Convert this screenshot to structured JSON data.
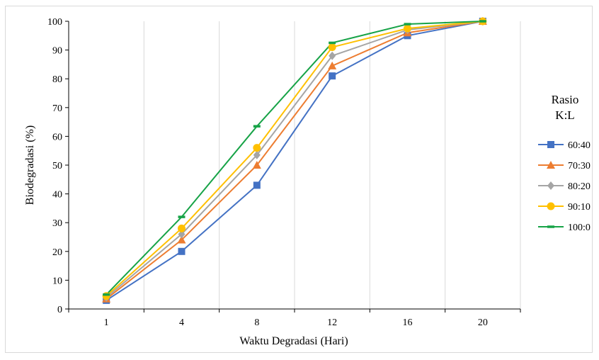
{
  "chart_data": {
    "type": "line",
    "title": "",
    "xlabel": "Waktu Degradasi (Hari)",
    "ylabel": "Biodegradasi (%)",
    "categories": [
      "1",
      "4",
      "8",
      "12",
      "16",
      "20"
    ],
    "ylim": [
      0,
      100
    ],
    "yticks": [
      0,
      10,
      20,
      30,
      40,
      50,
      60,
      70,
      80,
      90,
      100
    ],
    "grid": "vertical",
    "legend": {
      "title_line1": "Rasio",
      "title_line2": "K:L",
      "placement": "right"
    },
    "series": [
      {
        "name": "60:40",
        "color": "#4472c4",
        "marker": "square",
        "values": [
          3,
          20,
          43,
          81,
          95,
          100
        ]
      },
      {
        "name": "70:30",
        "color": "#ed7d31",
        "marker": "triangle",
        "values": [
          3.5,
          24,
          50,
          84.5,
          96,
          100
        ]
      },
      {
        "name": "80:20",
        "color": "#a5a5a5",
        "marker": "diamond",
        "values": [
          4,
          26,
          53.5,
          88,
          97,
          100
        ]
      },
      {
        "name": "90:10",
        "color": "#ffc000",
        "marker": "circle",
        "values": [
          4.5,
          28,
          56,
          91,
          97.5,
          100
        ]
      },
      {
        "name": "100:0",
        "color": "#17a347",
        "marker": "dash",
        "values": [
          5,
          32,
          63.5,
          92.5,
          99,
          100
        ]
      }
    ]
  }
}
